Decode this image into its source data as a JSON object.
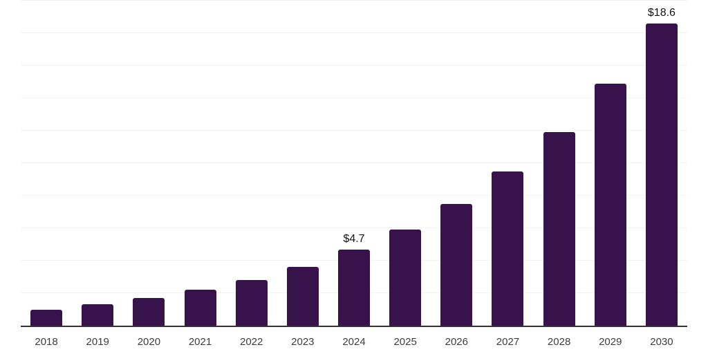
{
  "chart_data": {
    "type": "bar",
    "title": "",
    "xlabel": "",
    "ylabel": "",
    "categories": [
      "2018",
      "2019",
      "2020",
      "2021",
      "2022",
      "2023",
      "2024",
      "2025",
      "2026",
      "2027",
      "2028",
      "2029",
      "2030"
    ],
    "values": [
      1.0,
      1.3,
      1.7,
      2.2,
      2.8,
      3.6,
      4.7,
      5.9,
      7.5,
      9.5,
      11.9,
      14.9,
      18.6
    ],
    "labeled_points": [
      {
        "category": "2024",
        "label": "$4.7"
      },
      {
        "category": "2030",
        "label": "$18.6"
      }
    ],
    "ylim": [
      0,
      20
    ],
    "grid_step": 2,
    "grid": true,
    "legend": false,
    "y_axis_ticks_visible": false,
    "colors": {
      "bar": "#37124B",
      "gridline": "#f3f3f3",
      "axis": "#333333",
      "tick_label": "#3d3d3d",
      "value_label": "#111111",
      "background": "#ffffff"
    }
  }
}
